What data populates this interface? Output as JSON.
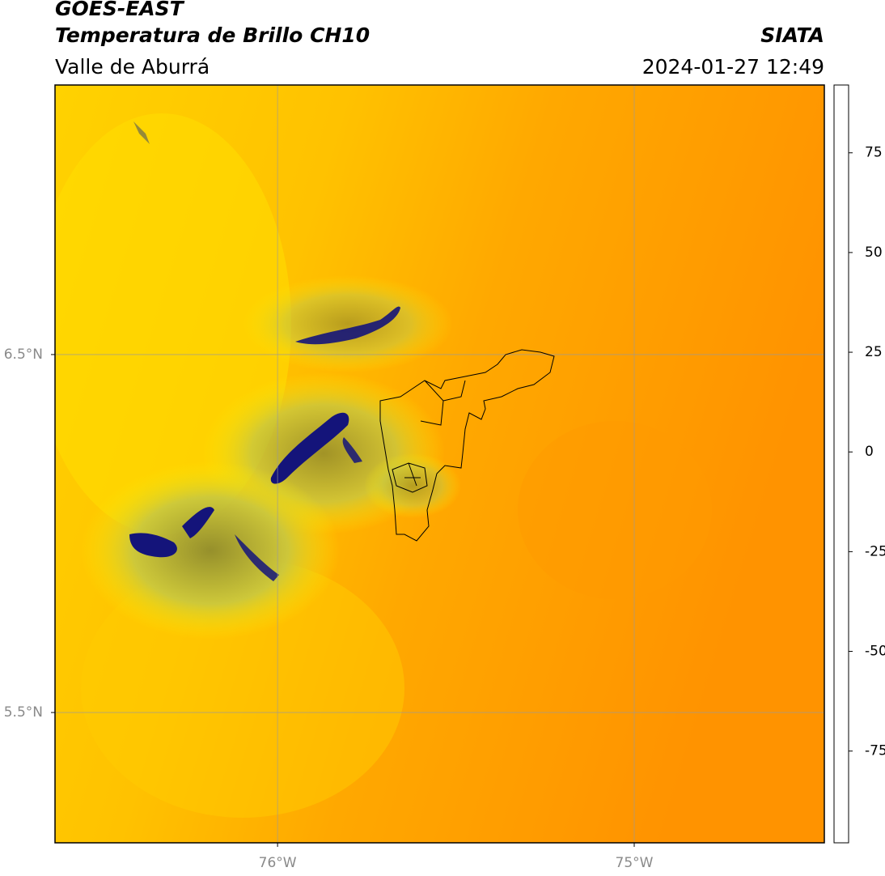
{
  "chart_data": {
    "type": "map",
    "title": "GOES-EAST",
    "subtitle": "Temperatura de Brillo CH10",
    "region": "Valle de Aburrá",
    "source": "SIATA",
    "date": "2024-01-27 12:49",
    "xlim": [
      -76.624,
      -74.467
    ],
    "ylim": [
      5.136,
      7.253
    ],
    "xticks": [
      {
        "value": -76,
        "label": "76°W"
      },
      {
        "value": -75,
        "label": "75°W"
      }
    ],
    "yticks": [
      {
        "value": 6.5,
        "label": "6.5°N"
      },
      {
        "value": 5.5,
        "label": "5.5°N"
      }
    ],
    "grid": true,
    "colorbar": {
      "lim": [
        -98,
        92
      ],
      "ticks": [
        -75,
        -50,
        -25,
        0,
        25,
        50,
        75
      ],
      "stops": [
        {
          "value": -98,
          "color": "#ffffff"
        },
        {
          "value": -93.5,
          "color": "#ffffff"
        },
        {
          "value": -93.5,
          "color": "#00e8e0"
        },
        {
          "value": -80,
          "color": "#20b090"
        },
        {
          "value": -62,
          "color": "#3a7f2a"
        },
        {
          "value": -52,
          "color": "#ffffff"
        },
        {
          "value": -40,
          "color": "#9a9ad0"
        },
        {
          "value": -28,
          "color": "#0a0a78"
        },
        {
          "value": -22,
          "color": "#8a8a30"
        },
        {
          "value": -15,
          "color": "#ffee00"
        },
        {
          "value": -6,
          "color": "#ffc000"
        },
        {
          "value": 4,
          "color": "#ff7a00"
        },
        {
          "value": 8,
          "color": "#ff1000"
        },
        {
          "value": 8,
          "color": "#000000"
        },
        {
          "value": 92,
          "color": "#000000"
        }
      ]
    }
  }
}
